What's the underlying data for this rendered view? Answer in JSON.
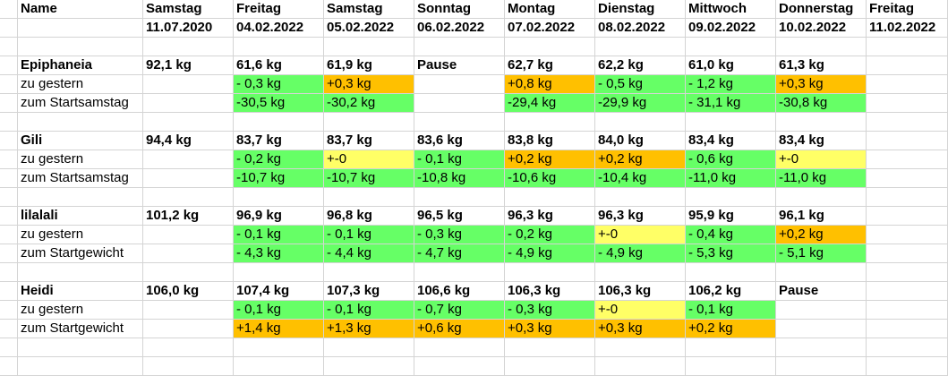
{
  "colors": {
    "green": "#66ff66",
    "orange": "#ffc000",
    "yellow": "#ffff66",
    "grid": "#d4d4d4"
  },
  "header": {
    "row1": [
      "Name",
      "Samstag",
      "Freitag",
      "Samstag",
      "Sonntag",
      "Montag",
      "Dienstag",
      "Mittwoch",
      "Donnerstag",
      "Freitag"
    ],
    "row2": [
      "",
      "11.07.2020",
      "04.02.2022",
      "05.02.2022",
      "06.02.2022",
      "07.02.2022",
      "08.02.2022",
      "09.02.2022",
      "10.02.2022",
      "11.02.2022"
    ]
  },
  "people": [
    {
      "main": [
        "Epiphaneia",
        "92,1 kg",
        "61,6 kg",
        "61,9 kg",
        "Pause",
        "62,7 kg",
        "62,2 kg",
        "61,0 kg",
        "61,3 kg",
        ""
      ],
      "rows": [
        {
          "cells": [
            "zu gestern",
            "",
            "- 0,3 kg",
            "+0,3 kg",
            "",
            "+0,8 kg",
            "- 0,5 kg",
            "- 1,2 kg",
            "+0,3 kg",
            ""
          ],
          "colors": [
            "",
            "",
            "green",
            "orange",
            "",
            "orange",
            "green",
            "green",
            "orange",
            ""
          ]
        },
        {
          "cells": [
            "zum Startsamstag",
            "",
            "-30,5 kg",
            "-30,2 kg",
            "",
            "-29,4 kg",
            "-29,9 kg",
            "- 31,1 kg",
            "-30,8 kg",
            ""
          ],
          "colors": [
            "",
            "",
            "green",
            "green",
            "",
            "green",
            "green",
            "green",
            "green",
            ""
          ]
        }
      ]
    },
    {
      "main": [
        "Gili",
        "94,4 kg",
        "83,7 kg",
        "83,7 kg",
        "83,6 kg",
        "83,8 kg",
        "84,0 kg",
        "83,4 kg",
        "83,4 kg",
        ""
      ],
      "rows": [
        {
          "cells": [
            "zu gestern",
            "",
            "- 0,2 kg",
            "+-0",
            "- 0,1 kg",
            "+0,2 kg",
            "+0,2 kg",
            "- 0,6 kg",
            "+-0",
            ""
          ],
          "colors": [
            "",
            "",
            "green",
            "yellow",
            "green",
            "orange",
            "orange",
            "green",
            "yellow",
            ""
          ]
        },
        {
          "cells": [
            "zum Startsamstag",
            "",
            "-10,7 kg",
            "-10,7 kg",
            "-10,8 kg",
            "-10,6 kg",
            "-10,4 kg",
            "-11,0 kg",
            "-11,0 kg",
            ""
          ],
          "colors": [
            "",
            "",
            "green",
            "green",
            "green",
            "green",
            "green",
            "green",
            "green",
            ""
          ]
        }
      ]
    },
    {
      "main": [
        "lilalali",
        "101,2 kg",
        "96,9 kg",
        "96,8 kg",
        "96,5 kg",
        "96,3 kg",
        "96,3 kg",
        "95,9 kg",
        "96,1 kg",
        ""
      ],
      "rows": [
        {
          "cells": [
            "zu gestern",
            "",
            "- 0,1 kg",
            "- 0,1 kg",
            "- 0,3 kg",
            "- 0,2 kg",
            "+-0",
            "- 0,4 kg",
            "+0,2 kg",
            ""
          ],
          "colors": [
            "",
            "",
            "green",
            "green",
            "green",
            "green",
            "yellow",
            "green",
            "orange",
            ""
          ]
        },
        {
          "cells": [
            "zum Startgewicht",
            "",
            "- 4,3 kg",
            "- 4,4 kg",
            "- 4,7 kg",
            "- 4,9 kg",
            "- 4,9 kg",
            "- 5,3 kg",
            "- 5,1 kg",
            ""
          ],
          "colors": [
            "",
            "",
            "green",
            "green",
            "green",
            "green",
            "green",
            "green",
            "green",
            ""
          ]
        }
      ]
    },
    {
      "main": [
        "Heidi",
        "106,0 kg",
        "107,4 kg",
        "107,3 kg",
        "106,6 kg",
        "106,3 kg",
        "106,3 kg",
        "106,2 kg",
        "Pause",
        ""
      ],
      "rows": [
        {
          "cells": [
            "zu gestern",
            "",
            "- 0,1 kg",
            "- 0,1 kg",
            "- 0,7 kg",
            "- 0,3 kg",
            "+-0",
            "- 0,1 kg",
            "",
            ""
          ],
          "colors": [
            "",
            "",
            "green",
            "green",
            "green",
            "green",
            "yellow",
            "green",
            "",
            ""
          ]
        },
        {
          "cells": [
            "zum Startgewicht",
            "",
            "+1,4 kg",
            "+1,3 kg",
            "+0,6 kg",
            "+0,3 kg",
            "+0,3 kg",
            "+0,2 kg",
            "",
            ""
          ],
          "colors": [
            "",
            "",
            "orange",
            "orange",
            "orange",
            "orange",
            "orange",
            "orange",
            "",
            ""
          ]
        }
      ]
    }
  ]
}
